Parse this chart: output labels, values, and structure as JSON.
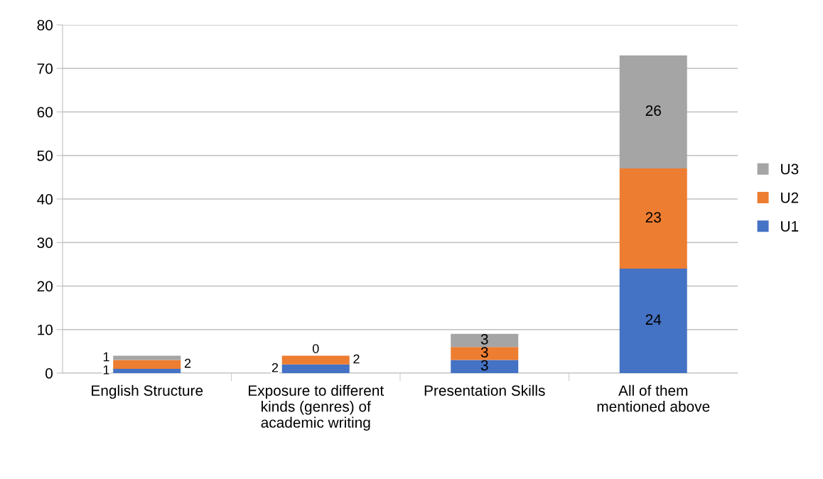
{
  "chart_data": {
    "type": "bar",
    "stacked": true,
    "categories": [
      "English Structure",
      "Exposure to different\nkinds (genres) of\nacademic writing",
      "Presentation Skills",
      "All of them\nmentioned above"
    ],
    "series": [
      {
        "name": "U1",
        "color": "#4472c4",
        "values": [
          1,
          2,
          3,
          24
        ]
      },
      {
        "name": "U2",
        "color": "#ed7d31",
        "values": [
          2,
          2,
          3,
          23
        ]
      },
      {
        "name": "U3",
        "color": "#a5a5a5",
        "values": [
          1,
          0,
          3,
          26
        ]
      }
    ],
    "ylim": [
      0,
      80
    ],
    "yticks": [
      0,
      10,
      20,
      30,
      40,
      50,
      60,
      70,
      80
    ],
    "grid": "y",
    "legend": "right",
    "data_labels": true
  }
}
